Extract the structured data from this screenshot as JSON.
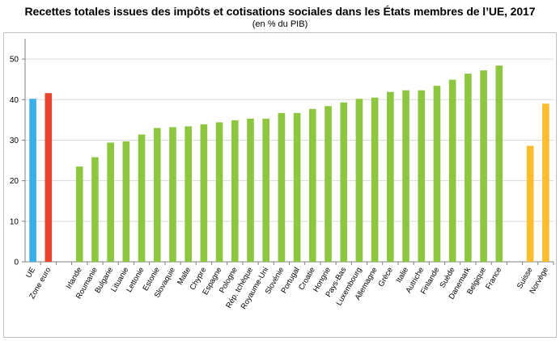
{
  "header": {
    "title": "Recettes totales issues des impôts et cotisations sociales dans les États membres de l’UE, 2017",
    "subtitle": "(en % du PIB)"
  },
  "colors": {
    "EU": "#3aaee6",
    "euro_area": "#e8452e",
    "member_states": "#8dc63f",
    "non_eu": "#fbbd2e"
  },
  "chart_data": {
    "type": "bar",
    "title": "Recettes totales issues des impôts et cotisations sociales dans les États membres de l’UE, 2017",
    "subtitle": "(en % du PIB)",
    "xlabel": "",
    "ylabel": "",
    "ylim": [
      0,
      55
    ],
    "yticks": [
      0,
      10,
      20,
      30,
      40,
      50
    ],
    "grid": true,
    "legend": "none",
    "bars": [
      {
        "label": "UE",
        "value": 40.2,
        "group": "EU"
      },
      {
        "label": "Zone euro",
        "value": 41.6,
        "group": "euro_area"
      },
      {
        "label": "",
        "value": null,
        "group": "gap"
      },
      {
        "label": "Irlande",
        "value": 23.5,
        "group": "member_states"
      },
      {
        "label": "Roumanie",
        "value": 25.8,
        "group": "member_states"
      },
      {
        "label": "Bulgarie",
        "value": 29.4,
        "group": "member_states"
      },
      {
        "label": "Lituanie",
        "value": 29.7,
        "group": "member_states"
      },
      {
        "label": "Lettonie",
        "value": 31.4,
        "group": "member_states"
      },
      {
        "label": "Estonie",
        "value": 33.0,
        "group": "member_states"
      },
      {
        "label": "Slovaquie",
        "value": 33.2,
        "group": "member_states"
      },
      {
        "label": "Malte",
        "value": 33.4,
        "group": "member_states"
      },
      {
        "label": "Chypre",
        "value": 33.9,
        "group": "member_states"
      },
      {
        "label": "Espagne",
        "value": 34.4,
        "group": "member_states"
      },
      {
        "label": "Pologne",
        "value": 34.9,
        "group": "member_states"
      },
      {
        "label": "Rép. tchèque",
        "value": 35.3,
        "group": "member_states"
      },
      {
        "label": "Royaume-Uni",
        "value": 35.3,
        "group": "member_states"
      },
      {
        "label": "Slovénie",
        "value": 36.7,
        "group": "member_states"
      },
      {
        "label": "Portugal",
        "value": 36.7,
        "group": "member_states"
      },
      {
        "label": "Croatie",
        "value": 37.7,
        "group": "member_states"
      },
      {
        "label": "Hongrie",
        "value": 38.4,
        "group": "member_states"
      },
      {
        "label": "Pays-Bas",
        "value": 39.3,
        "group": "member_states"
      },
      {
        "label": "Luxembourg",
        "value": 40.2,
        "group": "member_states"
      },
      {
        "label": "Allemagne",
        "value": 40.5,
        "group": "member_states"
      },
      {
        "label": "Grèce",
        "value": 41.9,
        "group": "member_states"
      },
      {
        "label": "Italie",
        "value": 42.3,
        "group": "member_states"
      },
      {
        "label": "Autriche",
        "value": 42.3,
        "group": "member_states"
      },
      {
        "label": "Finlande",
        "value": 43.4,
        "group": "member_states"
      },
      {
        "label": "Suède",
        "value": 44.9,
        "group": "member_states"
      },
      {
        "label": "Danemark",
        "value": 46.4,
        "group": "member_states"
      },
      {
        "label": "Belgique",
        "value": 47.2,
        "group": "member_states"
      },
      {
        "label": "France",
        "value": 48.4,
        "group": "member_states"
      },
      {
        "label": "",
        "value": null,
        "group": "gap"
      },
      {
        "label": "Suisse",
        "value": 28.6,
        "group": "non_eu"
      },
      {
        "label": "Norvège",
        "value": 39.0,
        "group": "non_eu"
      }
    ]
  }
}
